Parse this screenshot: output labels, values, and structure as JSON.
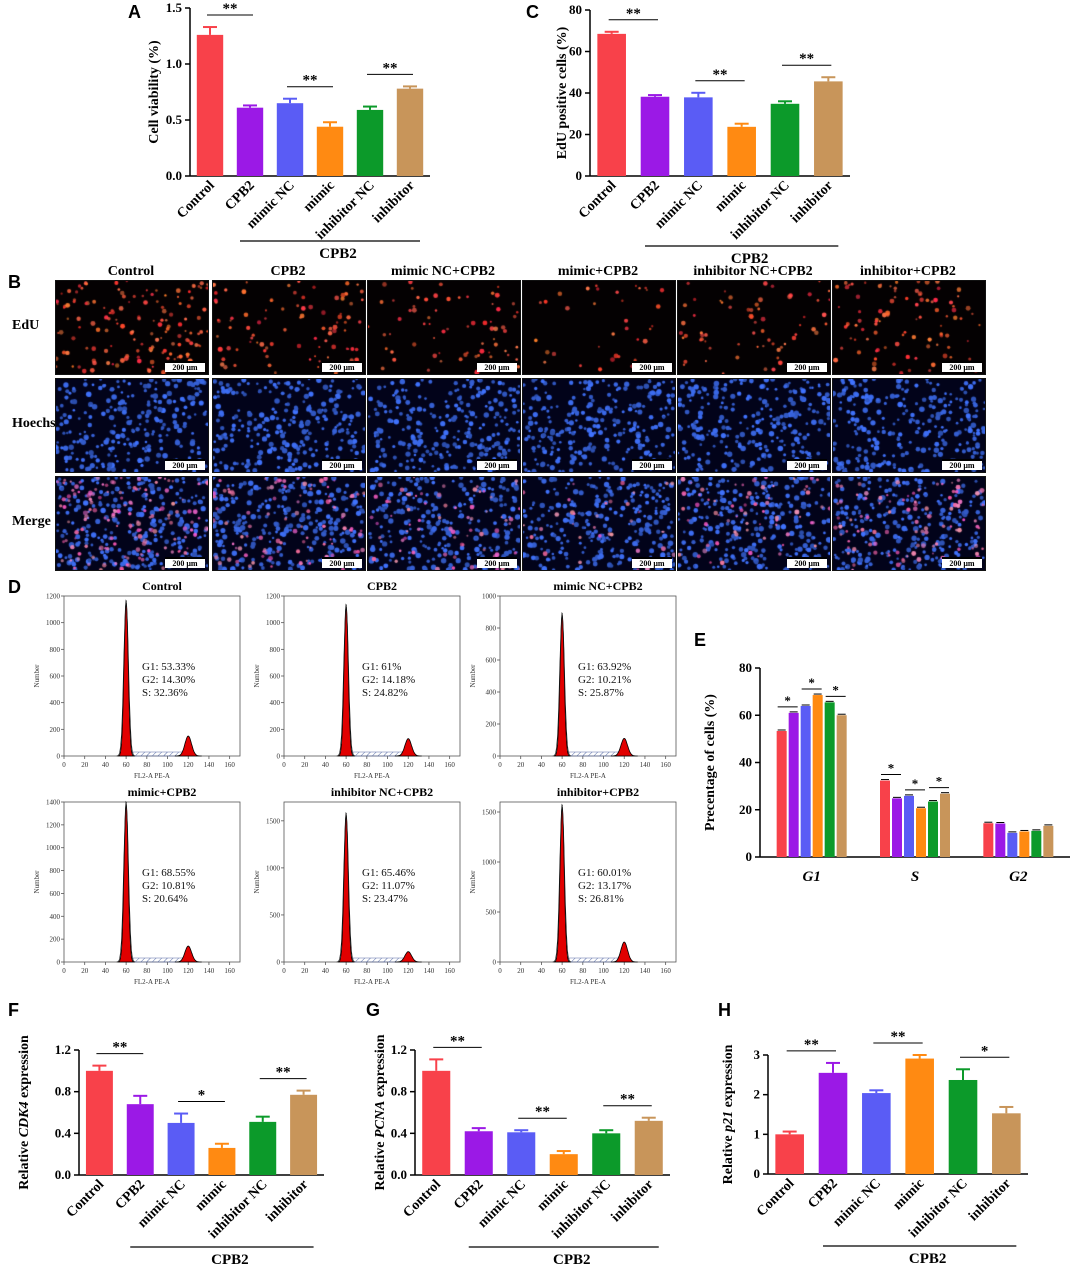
{
  "panel_letters": [
    "A",
    "B",
    "C",
    "D",
    "E",
    "F",
    "G",
    "H"
  ],
  "categories": [
    "Control",
    "CPB2",
    "mimic NC",
    "mimic",
    "inhibitor NC",
    "inhibitor"
  ],
  "group_label": "CPB2",
  "bar_colors": [
    "#f8414a",
    "#9b19e6",
    "#5a5cf5",
    "#ff8a12",
    "#0c9a2a",
    "#c8955a"
  ],
  "chart_data": [
    {
      "type": "bar",
      "panel": "A",
      "ylabel": "Cell viability (%)",
      "ylim": [
        0,
        1.5
      ],
      "yticks": [
        "0.0",
        "0.5",
        "1.0",
        "1.5"
      ],
      "values": [
        1.26,
        0.61,
        0.65,
        0.44,
        0.59,
        0.78
      ],
      "errors": [
        0.07,
        0.02,
        0.04,
        0.04,
        0.03,
        0.02
      ],
      "sig": [
        {
          "from": 0,
          "to": 1,
          "label": "**"
        },
        {
          "from": 2,
          "to": 3,
          "label": "**"
        },
        {
          "from": 4,
          "to": 5,
          "label": "**"
        }
      ]
    },
    {
      "type": "bar",
      "panel": "C",
      "ylabel": "EdU  positive cells (%)",
      "ylim": [
        0,
        80
      ],
      "yticks": [
        "0",
        "20",
        "40",
        "60",
        "80"
      ],
      "values": [
        68.5,
        38.2,
        37.9,
        23.7,
        34.8,
        45.6
      ],
      "errors": [
        1.0,
        0.8,
        2.2,
        1.5,
        1.2,
        2.0
      ],
      "sig": [
        {
          "from": 0,
          "to": 1,
          "label": "**"
        },
        {
          "from": 2,
          "to": 3,
          "label": "**"
        },
        {
          "from": 4,
          "to": 5,
          "label": "**"
        }
      ]
    },
    {
      "type": "bar",
      "panel": "E",
      "ylabel": "Precentage of cells (%)",
      "ylim": [
        0,
        80
      ],
      "yticks": [
        "0",
        "20",
        "40",
        "60",
        "80"
      ],
      "groups": [
        "G1",
        "S",
        "G2"
      ],
      "series_values": [
        [
          53.33,
          32.36,
          14.3
        ],
        [
          61.0,
          24.82,
          14.18
        ],
        [
          63.92,
          25.87,
          10.21
        ],
        [
          68.55,
          20.64,
          10.81
        ],
        [
          65.46,
          23.47,
          11.07
        ],
        [
          60.01,
          26.81,
          13.17
        ]
      ],
      "sig_label": "*"
    },
    {
      "type": "bar",
      "panel": "F",
      "ylabel_pre": "Relative ",
      "ylabel_gene": "CDK4",
      "ylabel_post": " expression",
      "ylim": [
        0,
        1.2
      ],
      "yticks": [
        "0.0",
        "0.4",
        "0.8",
        "1.2"
      ],
      "values": [
        1.0,
        0.68,
        0.5,
        0.26,
        0.51,
        0.77
      ],
      "errors": [
        0.05,
        0.08,
        0.09,
        0.04,
        0.05,
        0.04
      ],
      "sig": [
        {
          "from": 0,
          "to": 1,
          "label": "**"
        },
        {
          "from": 2,
          "to": 3,
          "label": "*"
        },
        {
          "from": 4,
          "to": 5,
          "label": "**"
        }
      ]
    },
    {
      "type": "bar",
      "panel": "G",
      "ylabel_pre": "Relative ",
      "ylabel_gene": "PCNA",
      "ylabel_post": " expression",
      "ylim": [
        0,
        1.2
      ],
      "yticks": [
        "0.0",
        "0.4",
        "0.8",
        "1.2"
      ],
      "values": [
        1.0,
        0.42,
        0.41,
        0.2,
        0.4,
        0.52
      ],
      "errors": [
        0.11,
        0.03,
        0.02,
        0.03,
        0.03,
        0.03
      ],
      "sig": [
        {
          "from": 0,
          "to": 1,
          "label": "**"
        },
        {
          "from": 2,
          "to": 3,
          "label": "**"
        },
        {
          "from": 4,
          "to": 5,
          "label": "**"
        }
      ]
    },
    {
      "type": "bar",
      "panel": "H",
      "ylabel_pre": "Relative ",
      "ylabel_gene": "p21",
      "ylabel_post": " expression",
      "ylim": [
        0,
        3
      ],
      "yticks": [
        "0",
        "1",
        "2",
        "3"
      ],
      "values": [
        1.0,
        2.55,
        2.04,
        2.91,
        2.37,
        1.53
      ],
      "errors": [
        0.07,
        0.25,
        0.07,
        0.09,
        0.27,
        0.16
      ],
      "sig": [
        {
          "from": 0,
          "to": 1,
          "label": "**"
        },
        {
          "from": 2,
          "to": 3,
          "label": "**"
        },
        {
          "from": 4,
          "to": 5,
          "label": "*"
        }
      ]
    }
  ],
  "microscopy": {
    "columns": [
      "Control",
      "CPB2",
      "mimic NC+CPB2",
      "mimic+CPB2",
      "inhibitor NC+CPB2",
      "inhibitor+CPB2"
    ],
    "rows": [
      "EdU",
      "Hoechst",
      "Merge"
    ],
    "scale_bar": "200 μm",
    "edu_density": [
      0.9,
      0.6,
      0.45,
      0.22,
      0.42,
      0.6
    ]
  },
  "flow": {
    "ylabel": "Number",
    "xlabel": "FL2-A PE-A",
    "xticks": [
      "0",
      "20",
      "40",
      "60",
      "80",
      "100",
      "120",
      "140",
      "160"
    ],
    "plots": [
      {
        "title": "Control",
        "yticks": [
          "0",
          "200",
          "400",
          "600",
          "800",
          "1000",
          "1200"
        ],
        "ymax": 1200,
        "peak": 1150,
        "g2peak": 150,
        "stats": [
          "G1: 53.33%",
          "G2: 14.30%",
          "S: 32.36%"
        ]
      },
      {
        "title": "CPB2",
        "yticks": [
          "0",
          "200",
          "400",
          "600",
          "800",
          "1000",
          "1200"
        ],
        "ymax": 1200,
        "peak": 1120,
        "g2peak": 130,
        "stats": [
          "G1: 61%",
          "G2: 14.18%",
          "S: 24.82%"
        ]
      },
      {
        "title": "mimic NC+CPB2",
        "yticks": [
          "0",
          "200",
          "400",
          "600",
          "800",
          "1000"
        ],
        "ymax": 1000,
        "peak": 880,
        "g2peak": 110,
        "stats": [
          "G1: 63.92%",
          "G2: 10.21%",
          "S: 25.87%"
        ]
      },
      {
        "title": "mimic+CPB2",
        "yticks": [
          "0",
          "200",
          "400",
          "600",
          "800",
          "1000",
          "1200",
          "1400"
        ],
        "ymax": 1400,
        "peak": 1380,
        "g2peak": 140,
        "stats": [
          "G1: 68.55%",
          "G2: 10.81%",
          "S: 20.64%"
        ]
      },
      {
        "title": "inhibitor NC+CPB2",
        "yticks": [
          "0",
          "500",
          "1000",
          "1500"
        ],
        "ymax": 1700,
        "peak": 1560,
        "g2peak": 110,
        "stats": [
          "G1: 65.46%",
          "G2: 11.07%",
          "S: 23.47%"
        ]
      },
      {
        "title": "inhibitor+CPB2",
        "yticks": [
          "0",
          "500",
          "1000",
          "1500"
        ],
        "ymax": 1600,
        "peak": 1550,
        "g2peak": 200,
        "stats": [
          "G1: 60.01%",
          "G2: 13.17%",
          "S: 26.81%"
        ]
      }
    ]
  }
}
